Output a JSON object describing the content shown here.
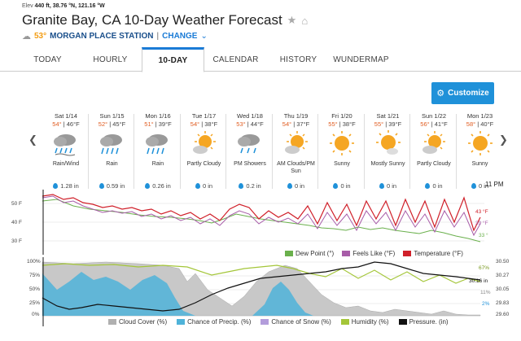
{
  "header": {
    "elev_label": "Elev",
    "elev": "440 ft,",
    "lat": "38.76 °N,",
    "lon": "121.16 °W",
    "title": "Granite Bay, CA 10-Day Weather Forecast",
    "current_temp": "53°",
    "station": "MORGAN PLACE STATION",
    "separator": "|",
    "change": "CHANGE"
  },
  "tabs": [
    "TODAY",
    "HOURLY",
    "10-DAY",
    "CALENDAR",
    "HISTORY",
    "WUNDERMAP"
  ],
  "active_tab": "10-DAY",
  "customize_label": "Customize",
  "days": [
    {
      "name": "Sat 1/14",
      "hi": "54°",
      "lo": "46°F",
      "icon": "rain-wind-icon",
      "cond": "Rain/Wind",
      "precip": "1.28 in"
    },
    {
      "name": "Sun 1/15",
      "hi": "52°",
      "lo": "45°F",
      "icon": "rain-icon",
      "cond": "Rain",
      "precip": "0.59 in"
    },
    {
      "name": "Mon 1/16",
      "hi": "51°",
      "lo": "39°F",
      "icon": "rain-icon",
      "cond": "Rain",
      "precip": "0.26 in"
    },
    {
      "name": "Tue 1/17",
      "hi": "54°",
      "lo": "38°F",
      "icon": "partly-cloudy-icon",
      "cond": "Partly Cloudy",
      "precip": "0 in"
    },
    {
      "name": "Wed 1/18",
      "hi": "53°",
      "lo": "44°F",
      "icon": "showers-icon",
      "cond": "PM Showers",
      "precip": "0.2 in"
    },
    {
      "name": "Thu 1/19",
      "hi": "54°",
      "lo": "37°F",
      "icon": "partly-cloudy-icon",
      "cond": "AM Clouds/PM Sun",
      "precip": "0 in"
    },
    {
      "name": "Fri 1/20",
      "hi": "55°",
      "lo": "38°F",
      "icon": "sunny-icon",
      "cond": "Sunny",
      "precip": "0 in"
    },
    {
      "name": "Sat 1/21",
      "hi": "55°",
      "lo": "39°F",
      "icon": "mostly-sunny-icon",
      "cond": "Mostly Sunny",
      "precip": "0 in"
    },
    {
      "name": "Sun 1/22",
      "hi": "56°",
      "lo": "41°F",
      "icon": "partly-cloudy-icon",
      "cond": "Partly Cloudy",
      "precip": "0 in"
    },
    {
      "name": "Mon 1/23",
      "hi": "58°",
      "lo": "40°F",
      "icon": "sunny-icon",
      "cond": "Sunny",
      "precip": "0 in"
    }
  ],
  "now_label": "11 PM",
  "chart_top": {
    "y_ticks": [
      "50 F",
      "40 F",
      "30 F"
    ],
    "right_values": {
      "temperature": "43 °F",
      "feels_like": "39 °F",
      "dew_point": "33 °"
    },
    "legend": [
      "Dew Point (°)",
      "Feels Like (°F)",
      "Temperature (°F)"
    ],
    "colors": {
      "dew": "#6ab04c",
      "feels": "#a75ca8",
      "temp": "#d0202a"
    }
  },
  "chart_bottom": {
    "y_ticks_left": [
      "100%",
      "75%",
      "50%",
      "25%",
      "0%"
    ],
    "y_ticks_right": [
      "30.50",
      "30.27",
      "30.05",
      "29.83",
      "29.60"
    ],
    "right_values": {
      "humidity": "67%",
      "pressure": "30.16 in",
      "cloud": "11%",
      "precip": "2%"
    },
    "legend": [
      "Cloud Cover (%)",
      "Chance of Precip. (%)",
      "Chance of Snow (%)",
      "Humidity (%)",
      "Pressure. (in)"
    ],
    "colors": {
      "cloud": "#b0b0b0",
      "precip": "#4fb3d9",
      "snow": "#b39ddb",
      "humidity": "#a4c639",
      "pressure": "#111111"
    }
  }
}
